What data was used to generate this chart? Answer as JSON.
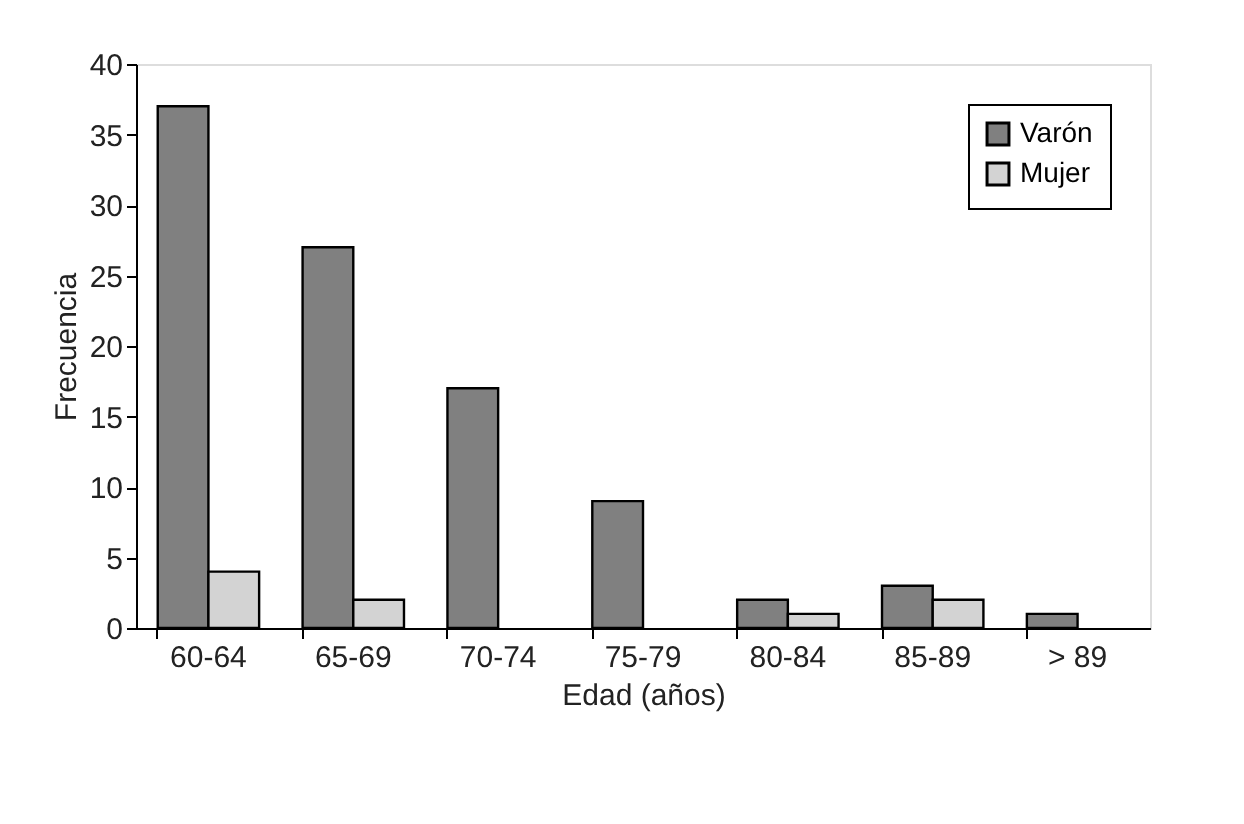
{
  "chart_data": {
    "type": "bar",
    "xlabel": "Edad (años)",
    "ylabel": "Frecuencia",
    "categories": [
      "60-64",
      "65-69",
      "70-74",
      "75-79",
      "80-84",
      "85-89",
      "> 89"
    ],
    "series": [
      {
        "name": "Varón",
        "color": "#808080",
        "values": [
          37,
          27,
          17,
          9,
          2,
          3,
          1
        ]
      },
      {
        "name": "Mujer",
        "color": "#d3d3d3",
        "values": [
          4,
          2,
          0,
          0,
          1,
          2,
          0
        ]
      }
    ],
    "ylim": [
      0,
      40
    ],
    "yticks": [
      0,
      5,
      10,
      15,
      20,
      25,
      30,
      35,
      40
    ],
    "grid": false,
    "legend": "top right"
  }
}
